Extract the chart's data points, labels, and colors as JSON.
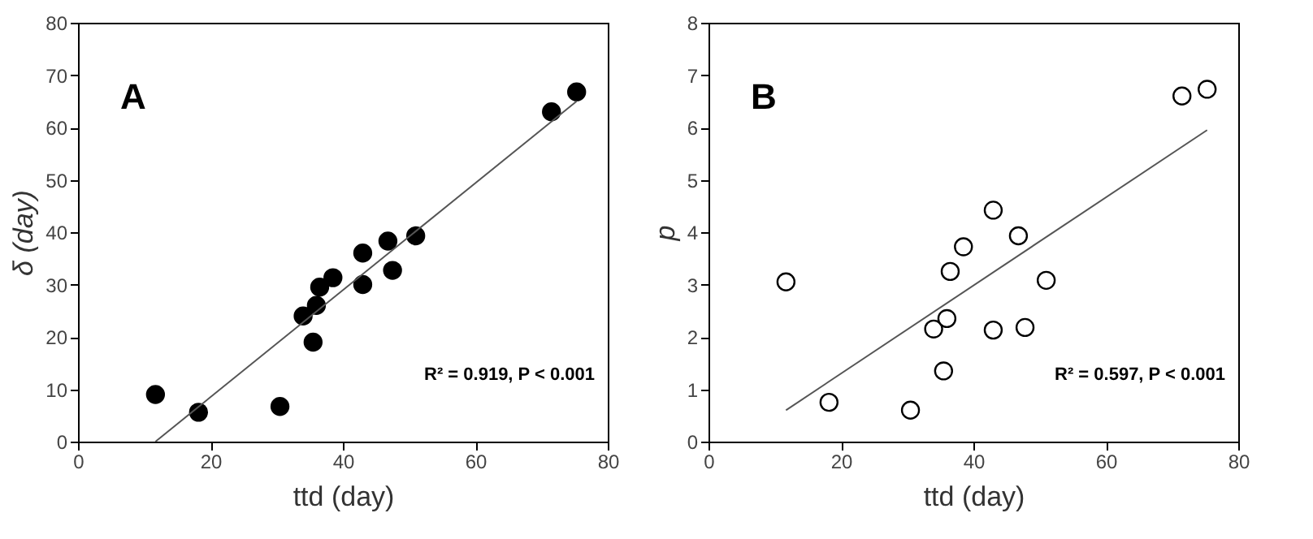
{
  "chart_data": [
    {
      "type": "scatter",
      "xlabel": "ttd (day)",
      "ylabel": "δ (day)",
      "xlim": [
        0,
        80
      ],
      "xticks": [
        0,
        20,
        40,
        60,
        80
      ],
      "ylim": [
        0,
        80
      ],
      "yticks": [
        0,
        10,
        20,
        30,
        40,
        50,
        60,
        70,
        80
      ],
      "grid": false,
      "annotations": [
        "A",
        "R² = 0.919, P < 0.001"
      ],
      "series": [
        {
          "marker": "circle",
          "color": "#000000",
          "x": [
            11.7,
            18.2,
            30.5,
            34,
            35.5,
            36,
            36.5,
            38.5,
            43,
            43,
            46.8,
            47.5,
            51,
            71.5,
            75.3
          ],
          "values": [
            9,
            5.6,
            6.7,
            24,
            19,
            26,
            29.5,
            31.3,
            36,
            30,
            38.3,
            32.7,
            39.3,
            63,
            66.8
          ]
        },
        {
          "type": "line",
          "color": "#555555",
          "x": [
            11.7,
            75.3
          ],
          "values": [
            0,
            65
          ]
        }
      ]
    },
    {
      "type": "scatter",
      "xlabel": "ttd (day)",
      "ylabel": "p",
      "xlim": [
        0,
        80
      ],
      "xticks": [
        0,
        20,
        40,
        60,
        80
      ],
      "ylim": [
        0,
        8
      ],
      "yticks": [
        0,
        1,
        2,
        3,
        4,
        5,
        6,
        7,
        8
      ],
      "grid": false,
      "annotations": [
        "B",
        "R² = 0.597, P < 0.001"
      ],
      "series": [
        {
          "marker": "circle",
          "color": "#ffffff",
          "x": [
            11.7,
            18.2,
            30.5,
            34,
            35.5,
            36,
            36.5,
            38.5,
            43,
            43,
            46.8,
            47.8,
            51,
            71.5,
            75.3
          ],
          "values": [
            3.05,
            0.75,
            0.6,
            2.15,
            1.35,
            2.35,
            3.25,
            3.72,
            4.42,
            2.13,
            3.93,
            2.18,
            3.08,
            6.6,
            6.73
          ]
        },
        {
          "type": "line",
          "color": "#555555",
          "x": [
            11.7,
            75.3
          ],
          "values": [
            0.6,
            5.95
          ]
        }
      ]
    }
  ]
}
